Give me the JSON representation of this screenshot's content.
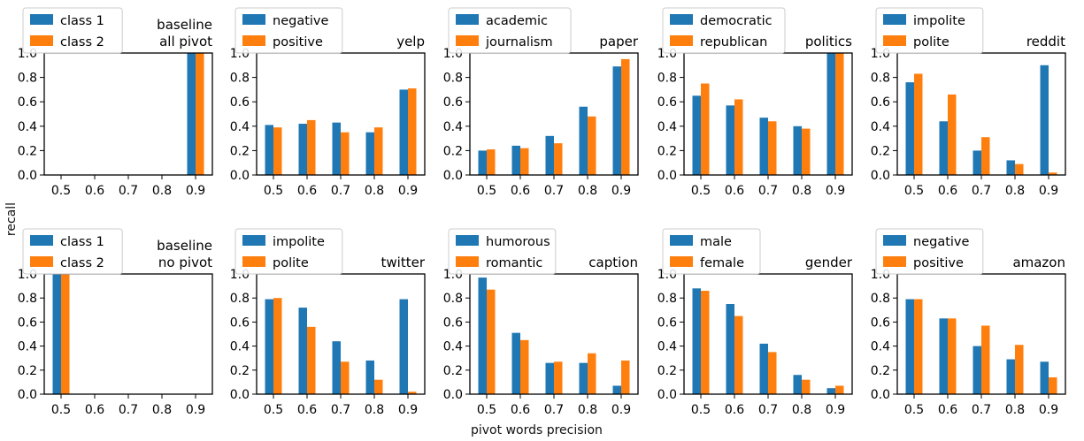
{
  "figure": {
    "xlabel": "pivot words precision",
    "ylabel": "recall"
  },
  "colors": {
    "class1": "#1f77b4",
    "class2": "#ff7f0e"
  },
  "chart_data": [
    {
      "type": "bar",
      "title": "baseline\nall pivot",
      "categories": [
        "0.5",
        "0.6",
        "0.7",
        "0.8",
        "0.9"
      ],
      "series": [
        {
          "name": "class 1",
          "values": [
            0,
            0,
            0,
            0,
            1.0
          ]
        },
        {
          "name": "class 2",
          "values": [
            0,
            0,
            0,
            0,
            1.0
          ]
        }
      ],
      "ylim": [
        0,
        1.0
      ],
      "yticks": [
        "0.0",
        "0.2",
        "0.4",
        "0.6",
        "0.8",
        "1.0"
      ],
      "legend": "top-left"
    },
    {
      "type": "bar",
      "title": "yelp",
      "categories": [
        "0.5",
        "0.6",
        "0.7",
        "0.8",
        "0.9"
      ],
      "series": [
        {
          "name": "negative",
          "values": [
            0.41,
            0.42,
            0.43,
            0.35,
            0.7
          ]
        },
        {
          "name": "positive",
          "values": [
            0.39,
            0.45,
            0.35,
            0.39,
            0.71
          ]
        }
      ],
      "ylim": [
        0,
        1.0
      ],
      "yticks": [
        "0.0",
        "0.2",
        "0.4",
        "0.6",
        "0.8",
        "1.0"
      ],
      "legend": "top-left"
    },
    {
      "type": "bar",
      "title": "paper",
      "categories": [
        "0.5",
        "0.6",
        "0.7",
        "0.8",
        "0.9"
      ],
      "series": [
        {
          "name": "academic",
          "values": [
            0.2,
            0.24,
            0.32,
            0.56,
            0.89
          ]
        },
        {
          "name": "journalism",
          "values": [
            0.21,
            0.22,
            0.26,
            0.48,
            0.95
          ]
        }
      ],
      "ylim": [
        0,
        1.0
      ],
      "yticks": [
        "0.0",
        "0.2",
        "0.4",
        "0.6",
        "0.8",
        "1.0"
      ],
      "legend": "top-left"
    },
    {
      "type": "bar",
      "title": "politics",
      "categories": [
        "0.5",
        "0.6",
        "0.7",
        "0.8",
        "0.9"
      ],
      "series": [
        {
          "name": "democratic",
          "values": [
            0.65,
            0.57,
            0.47,
            0.4,
            1.0
          ]
        },
        {
          "name": "republican",
          "values": [
            0.75,
            0.62,
            0.44,
            0.38,
            1.0
          ]
        }
      ],
      "ylim": [
        0,
        1.0
      ],
      "yticks": [
        "0.0",
        "0.2",
        "0.4",
        "0.6",
        "0.8",
        "1.0"
      ],
      "legend": "top-left"
    },
    {
      "type": "bar",
      "title": "reddit",
      "categories": [
        "0.5",
        "0.6",
        "0.7",
        "0.8",
        "0.9"
      ],
      "series": [
        {
          "name": "impolite",
          "values": [
            0.76,
            0.44,
            0.2,
            0.12,
            0.9
          ]
        },
        {
          "name": "polite",
          "values": [
            0.83,
            0.66,
            0.31,
            0.09,
            0.02
          ]
        }
      ],
      "ylim": [
        0,
        1.0
      ],
      "yticks": [
        "0.0",
        "0.2",
        "0.4",
        "0.6",
        "0.8",
        "1.0"
      ],
      "legend": "top-left"
    },
    {
      "type": "bar",
      "title": "baseline\nno pivot",
      "categories": [
        "0.5",
        "0.6",
        "0.7",
        "0.8",
        "0.9"
      ],
      "series": [
        {
          "name": "class 1",
          "values": [
            1.0,
            0,
            0,
            0,
            0
          ]
        },
        {
          "name": "class 2",
          "values": [
            1.0,
            0,
            0,
            0,
            0
          ]
        }
      ],
      "ylim": [
        0,
        1.0
      ],
      "yticks": [
        "0.0",
        "0.2",
        "0.4",
        "0.6",
        "0.8",
        "1.0"
      ],
      "legend": "top-left"
    },
    {
      "type": "bar",
      "title": "twitter",
      "categories": [
        "0.5",
        "0.6",
        "0.7",
        "0.8",
        "0.9"
      ],
      "series": [
        {
          "name": "impolite",
          "values": [
            0.79,
            0.72,
            0.44,
            0.28,
            0.79
          ]
        },
        {
          "name": "polite",
          "values": [
            0.8,
            0.56,
            0.27,
            0.12,
            0.02
          ]
        }
      ],
      "ylim": [
        0,
        1.0
      ],
      "yticks": [
        "0.0",
        "0.2",
        "0.4",
        "0.6",
        "0.8",
        "1.0"
      ],
      "legend": "top-left"
    },
    {
      "type": "bar",
      "title": "caption",
      "categories": [
        "0.5",
        "0.6",
        "0.7",
        "0.8",
        "0.9"
      ],
      "series": [
        {
          "name": "humorous",
          "values": [
            0.97,
            0.51,
            0.26,
            0.26,
            0.07
          ]
        },
        {
          "name": "romantic",
          "values": [
            0.87,
            0.45,
            0.27,
            0.34,
            0.28
          ]
        }
      ],
      "ylim": [
        0,
        1.0
      ],
      "yticks": [
        "0.0",
        "0.2",
        "0.4",
        "0.6",
        "0.8",
        "1.0"
      ],
      "legend": "top-left"
    },
    {
      "type": "bar",
      "title": "gender",
      "categories": [
        "0.5",
        "0.6",
        "0.7",
        "0.8",
        "0.9"
      ],
      "series": [
        {
          "name": "male",
          "values": [
            0.88,
            0.75,
            0.42,
            0.16,
            0.05
          ]
        },
        {
          "name": "female",
          "values": [
            0.86,
            0.65,
            0.35,
            0.12,
            0.07
          ]
        }
      ],
      "ylim": [
        0,
        1.0
      ],
      "yticks": [
        "0.0",
        "0.2",
        "0.4",
        "0.6",
        "0.8",
        "1.0"
      ],
      "legend": "top-left"
    },
    {
      "type": "bar",
      "title": "amazon",
      "categories": [
        "0.5",
        "0.6",
        "0.7",
        "0.8",
        "0.9"
      ],
      "series": [
        {
          "name": "negative",
          "values": [
            0.79,
            0.63,
            0.4,
            0.29,
            0.27
          ]
        },
        {
          "name": "positive",
          "values": [
            0.79,
            0.63,
            0.57,
            0.41,
            0.14
          ]
        }
      ],
      "ylim": [
        0,
        1.0
      ],
      "yticks": [
        "0.0",
        "0.2",
        "0.4",
        "0.6",
        "0.8",
        "1.0"
      ],
      "legend": "top-left"
    }
  ]
}
